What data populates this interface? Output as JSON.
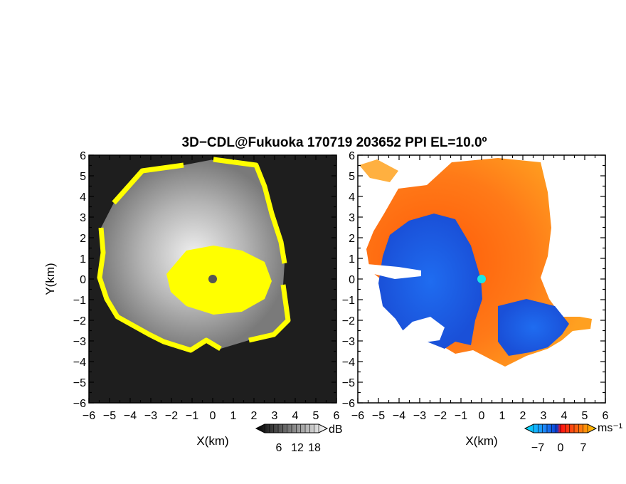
{
  "title": "3D−CDL@Fukuoka 170719 203652 PPI EL=10.0º",
  "colors": {
    "reflectivity_high": "#ffff00",
    "background_dark": "#1e1e1e",
    "velocity_neg": "#1f6cf0",
    "velocity_pos": "#ff6a10",
    "radar_center_left": "#555555",
    "radar_center_right": "#19e6e6"
  },
  "chart_data": [
    {
      "panel": "left",
      "type": "heatmap",
      "field": "reflectivity",
      "xlabel": "X(km)",
      "ylabel": "Y(km)",
      "xlim": [
        -6,
        6
      ],
      "ylim": [
        -6,
        6
      ],
      "xticks": [
        "−6",
        "−5",
        "−4",
        "−3",
        "−2",
        "−1",
        "0",
        "1",
        "2",
        "3",
        "4",
        "5",
        "6"
      ],
      "yticks": [
        "6",
        "5",
        "4",
        "3",
        "2",
        "1",
        "0",
        "−1",
        "−2",
        "−3",
        "−4",
        "−5",
        "−6"
      ],
      "colorbar": {
        "unit": "dB",
        "ticks": [
          "6",
          "12",
          "18"
        ]
      }
    },
    {
      "panel": "right",
      "type": "heatmap",
      "field": "doppler velocity",
      "xlabel": "X(km)",
      "xlim": [
        -6,
        6
      ],
      "ylim": [
        -6,
        6
      ],
      "xticks": [
        "−6",
        "−5",
        "−4",
        "−3",
        "−2",
        "−1",
        "0",
        "1",
        "2",
        "3",
        "4",
        "5",
        "6"
      ],
      "yticks": [
        "6",
        "5",
        "4",
        "3",
        "2",
        "1",
        "0",
        "−1",
        "−2",
        "−3",
        "−4",
        "−5",
        "−6"
      ],
      "colorbar": {
        "unit": "ms⁻¹",
        "ticks": [
          "−7",
          "0",
          "7"
        ]
      }
    }
  ]
}
